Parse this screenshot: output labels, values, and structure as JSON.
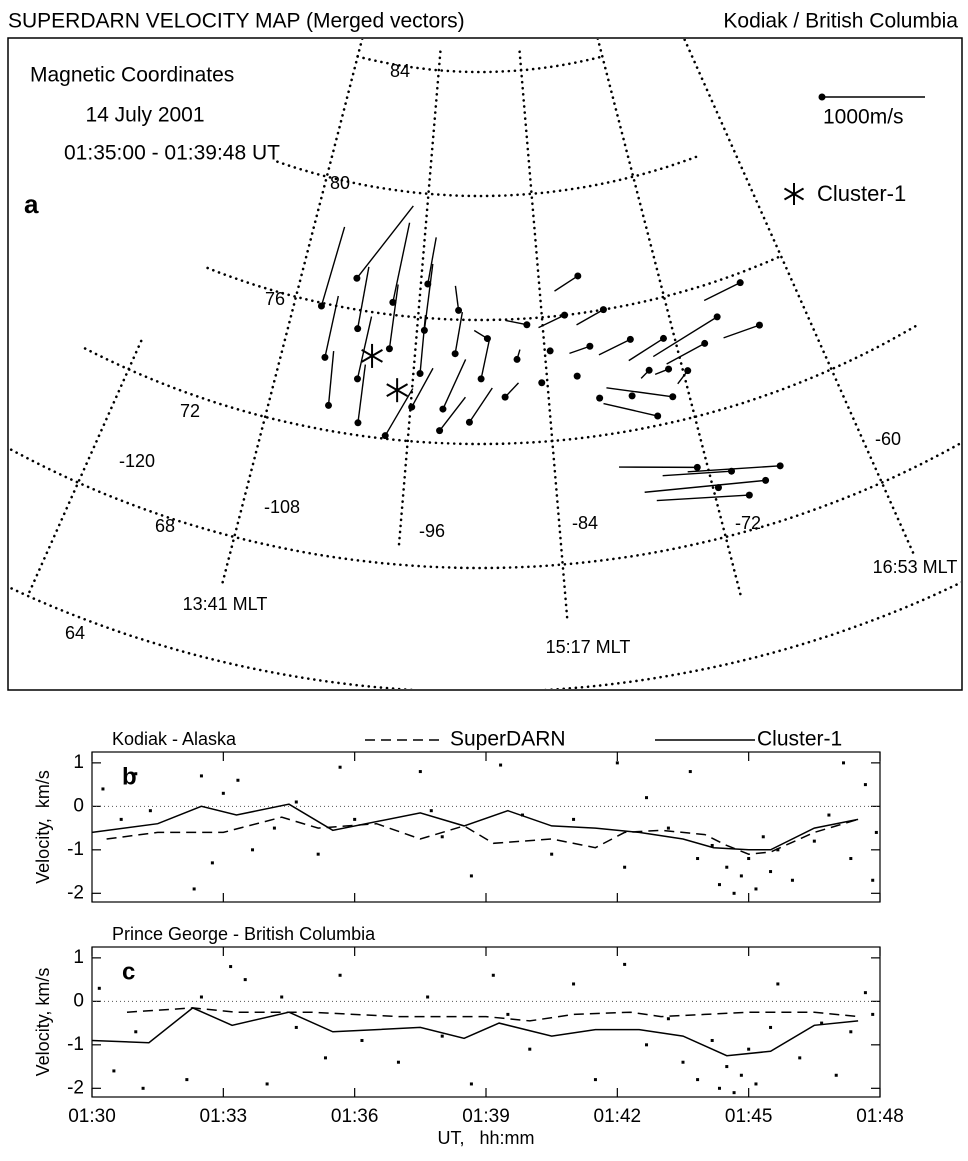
{
  "header": {
    "title": "SUPERDARN VELOCITY MAP (Merged vectors)",
    "region": "Kodiak / British Columbia"
  },
  "map": {
    "type": "vector-map",
    "panel": "a",
    "coordinates": "Magnetic Coordinates",
    "date": "14 July 2001",
    "interval": "01:35:00 - 01:39:48 UT",
    "latitudes": [
      84,
      80,
      76,
      72,
      68,
      64
    ],
    "longitudes": [
      -120,
      -108,
      -96,
      -84,
      -72,
      -60
    ],
    "mlt_labels": [
      "13:41 MLT",
      "15:17 MLT",
      "16:53 MLT"
    ],
    "scale": {
      "value": 1000,
      "label": "1000m/s"
    },
    "marker": {
      "name": "Cluster-1",
      "mlat": [
        74.6,
        73.6
      ],
      "mlon": [
        -99.9,
        -97.3
      ]
    },
    "vectors": {
      "mlat": [
        75.9,
        77.0,
        74.3,
        75.4,
        76.4,
        77.1,
        73.8,
        74.9,
        75.6,
        72.8,
        72.4,
        74.2,
        72.1,
        73.1,
        76.3,
        74.9,
        73.1,
        72.4,
        74.1,
        72.7,
        75.4,
        73.5,
        74.7,
        75.8,
        76.0,
        74.9,
        73.9,
        77.2,
        76.0,
        74.9,
        74.9,
        74.0,
        74.7,
        73.8,
        73.7,
        74.9,
        74.2,
        73.5,
        75.7,
        74.2,
        72.8,
        73.2,
        73.1,
        72.3,
        69.7,
        70.0,
        70.4,
        69.4,
        69.1,
        69.6
      ],
      "mlon": [
        -105.4,
        -102.5,
        -104.1,
        -101.6,
        -98.6,
        -95.3,
        -100.9,
        -98.4,
        -95.3,
        -103,
        -100.3,
        -95.4,
        -97.9,
        -95.9,
        -92.1,
        -92.3,
        -93.2,
        -93.4,
        -89.9,
        -90.9,
        -89.3,
        -87.8,
        -86.6,
        -85.5,
        -81.8,
        -83.5,
        -84.5,
        -80,
        -78,
        -79.8,
        -76,
        -81.3,
        -73,
        -74.9,
        -73.2,
        -67.7,
        -69.5,
        -71.6,
        -64.6,
        -64.3,
        -73.4,
        -79.6,
        -76.8,
        -75,
        -66.6,
        -70.3,
        -72.8,
        -68,
        -69.5,
        -71.6
      ],
      "speed": [
        800,
        890,
        610,
        610,
        790,
        460,
        620,
        630,
        650,
        530,
        570,
        570,
        530,
        430,
        240,
        410,
        530,
        410,
        390,
        400,
        150,
        190,
        100,
        210,
        280,
        30,
        30,
        270,
        300,
        210,
        340,
        30,
        400,
        110,
        140,
        730,
        420,
        160,
        390,
        370,
        650,
        30,
        30,
        540,
        900,
        670,
        760,
        1180,
        900,
        30
      ],
      "azimuth": [
        4,
        28,
        1,
        1,
        5,
        6,
        4,
        1,
        3,
        355,
        359,
        1,
        24,
        24,
        351,
        8,
        22,
        35,
        12,
        33,
        302,
        45,
        19,
        285,
        251,
        0,
        0,
        245,
        250,
        259,
        255,
        0,
        251,
        237,
        262,
        256,
        258,
        232,
        264,
        271,
        291,
        0,
        0,
        295,
        285,
        282,
        284,
        282,
        283,
        0
      ]
    }
  },
  "chart_data": [
    {
      "type": "line",
      "title": "Kodiak - Alaska",
      "panel": "b",
      "ylabel": "Velocity,  km/s",
      "xlim": [
        "01:30",
        "01:48"
      ],
      "ylim": [
        -2.2,
        1.25
      ],
      "yticks": [
        1,
        0,
        -1,
        -2
      ],
      "zero_line": true,
      "series": [
        {
          "name": "SuperDARN",
          "color": "#000000",
          "style": "dashed",
          "x": [
            "01:30:20",
            "01:31:30",
            "01:33:00",
            "01:34:20",
            "01:35:10",
            "01:36:30",
            "01:37:30",
            "01:38:30",
            "01:39:10",
            "01:40:30",
            "01:41:30",
            "01:42:10",
            "01:43:00",
            "01:44:00",
            "01:44:30",
            "01:45:00",
            "01:45:30",
            "01:46:30",
            "01:47:30"
          ],
          "values": [
            -0.75,
            -0.6,
            -0.6,
            -0.25,
            -0.5,
            -0.4,
            -0.75,
            -0.45,
            -0.85,
            -0.75,
            -0.95,
            -0.6,
            -0.55,
            -0.65,
            -0.9,
            -1.1,
            -1.05,
            -0.6,
            -0.3
          ]
        },
        {
          "name": "Cluster-1",
          "color": "#000000",
          "style": "solid",
          "x": [
            "01:30:00",
            "01:31:30",
            "01:32:30",
            "01:33:18",
            "01:34:30",
            "01:35:30",
            "01:37:30",
            "01:38:30",
            "01:39:30",
            "01:40:30",
            "01:41:30",
            "01:42:30",
            "01:43:30",
            "01:44:12",
            "01:45:00",
            "01:45:30",
            "01:46:30",
            "01:47:30"
          ],
          "values": [
            -0.6,
            -0.4,
            0.0,
            -0.2,
            0.05,
            -0.55,
            -0.15,
            -0.45,
            -0.1,
            -0.45,
            -0.5,
            -0.6,
            -0.75,
            -0.95,
            -1.0,
            -1.0,
            -0.5,
            -0.3
          ]
        }
      ],
      "points": {
        "color": "#000000",
        "x": [
          "01:30:15",
          "01:30:40",
          "01:31:00",
          "01:31:20",
          "01:32:20",
          "01:32:30",
          "01:32:45",
          "01:33:00",
          "01:33:20",
          "01:33:40",
          "01:34:10",
          "01:34:40",
          "01:35:10",
          "01:35:40",
          "01:36:00",
          "01:37:30",
          "01:37:45",
          "01:38:00",
          "01:38:40",
          "01:39:20",
          "01:39:50",
          "01:40:30",
          "01:41:00",
          "01:42:00",
          "01:42:10",
          "01:42:40",
          "01:43:10",
          "01:43:40",
          "01:43:50",
          "01:44:10",
          "01:44:20",
          "01:44:30",
          "01:44:40",
          "01:44:50",
          "01:45:00",
          "01:45:10",
          "01:45:20",
          "01:45:30",
          "01:45:40",
          "01:46:00",
          "01:46:30",
          "01:46:50",
          "01:47:10",
          "01:47:20",
          "01:47:40",
          "01:47:50",
          "01:47:55"
        ],
        "values": [
          0.4,
          -0.3,
          0.75,
          -0.1,
          -1.9,
          0.7,
          -1.3,
          0.3,
          0.6,
          -1.0,
          -0.5,
          0.1,
          -1.1,
          0.9,
          -0.3,
          0.8,
          -0.1,
          -0.7,
          -1.6,
          0.95,
          -0.2,
          -1.1,
          -0.3,
          1.0,
          -1.4,
          0.2,
          -0.5,
          0.8,
          -1.2,
          -0.9,
          -1.8,
          -1.4,
          -2.0,
          -1.6,
          -1.2,
          -1.9,
          -0.7,
          -1.5,
          -1.0,
          -1.7,
          -0.8,
          -0.2,
          1.0,
          -1.2,
          0.5,
          -1.7,
          -0.6
        ]
      }
    },
    {
      "type": "line",
      "title": "Prince George - British Columbia",
      "panel": "c",
      "ylabel": "Velocity, km/s",
      "xlabel": "UT,   hh:mm",
      "xlim": [
        "01:30",
        "01:48"
      ],
      "xticks": [
        "01:30",
        "01:33",
        "01:36",
        "01:39",
        "01:42",
        "01:45",
        "01:48"
      ],
      "ylim": [
        -2.2,
        1.25
      ],
      "yticks": [
        1,
        0,
        -1,
        -2
      ],
      "zero_line": true,
      "series": [
        {
          "color": "#000000",
          "style": "dashed",
          "x": [
            "01:30:48",
            "01:32:18",
            "01:33:18",
            "01:35:00",
            "01:37:00",
            "01:39:00",
            "01:40:00",
            "01:41:00",
            "01:42:18",
            "01:43:00",
            "01:44:00",
            "01:45:00",
            "01:46:30",
            "01:47:30"
          ],
          "values": [
            -0.25,
            -0.15,
            -0.25,
            -0.25,
            -0.35,
            -0.35,
            -0.45,
            -0.3,
            -0.25,
            -0.35,
            -0.3,
            -0.25,
            -0.25,
            -0.35
          ]
        },
        {
          "color": "#000000",
          "style": "solid",
          "x": [
            "01:30:00",
            "01:31:18",
            "01:32:18",
            "01:33:12",
            "01:34:30",
            "01:35:30",
            "01:37:30",
            "01:38:30",
            "01:39:18",
            "01:40:30",
            "01:41:30",
            "01:42:30",
            "01:43:30",
            "01:44:30",
            "01:45:30",
            "01:46:30",
            "01:47:30"
          ],
          "values": [
            -0.9,
            -0.95,
            -0.15,
            -0.55,
            -0.25,
            -0.7,
            -0.6,
            -0.85,
            -0.5,
            -0.8,
            -0.65,
            -0.65,
            -0.8,
            -1.25,
            -1.15,
            -0.55,
            -0.45
          ]
        }
      ],
      "points": {
        "color": "#000000",
        "x": [
          "01:30:10",
          "01:30:30",
          "01:31:00",
          "01:31:10",
          "01:32:10",
          "01:32:30",
          "01:33:10",
          "01:33:30",
          "01:34:00",
          "01:34:20",
          "01:34:40",
          "01:35:20",
          "01:35:40",
          "01:36:10",
          "01:37:00",
          "01:37:40",
          "01:38:00",
          "01:38:40",
          "01:39:10",
          "01:39:30",
          "01:40:00",
          "01:41:00",
          "01:41:30",
          "01:42:10",
          "01:42:40",
          "01:43:10",
          "01:43:30",
          "01:43:50",
          "01:44:10",
          "01:44:20",
          "01:44:30",
          "01:44:40",
          "01:44:50",
          "01:45:00",
          "01:45:10",
          "01:45:30",
          "01:45:40",
          "01:46:10",
          "01:46:40",
          "01:47:00",
          "01:47:20",
          "01:47:40",
          "01:47:50"
        ],
        "values": [
          0.3,
          -1.6,
          -0.7,
          -2.0,
          -1.8,
          0.1,
          0.8,
          0.5,
          -1.9,
          0.1,
          -0.6,
          -1.3,
          0.6,
          -0.9,
          -1.4,
          0.1,
          -0.8,
          -1.9,
          0.6,
          -0.3,
          -1.1,
          0.4,
          -1.8,
          0.85,
          -1.0,
          -0.4,
          -1.4,
          -1.8,
          -0.9,
          -2.0,
          -1.5,
          -2.1,
          -1.7,
          -1.1,
          -1.9,
          -0.6,
          0.4,
          -1.3,
          -0.5,
          -1.7,
          -0.7,
          0.2,
          -0.3
        ]
      }
    }
  ]
}
